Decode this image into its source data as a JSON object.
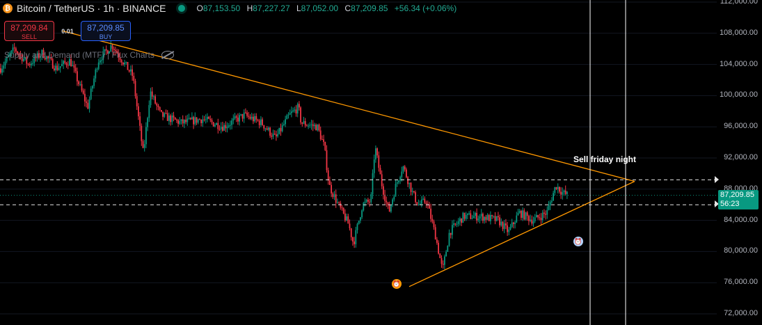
{
  "header": {
    "symbol_icon": "bitcoin-icon",
    "symbol_icon_glyph": "₿",
    "title": "Bitcoin / TetherUS · 1h · BINANCE",
    "ohlc": [
      {
        "k": "O",
        "v": "87,153.50"
      },
      {
        "k": "H",
        "v": "87,227.27"
      },
      {
        "k": "L",
        "v": "87,052.00"
      },
      {
        "k": "C",
        "v": "87,209.85"
      }
    ],
    "change": "+56.34 (+0.06%)"
  },
  "trade": {
    "sell_price": "87,209.84",
    "sell_label": "SELL",
    "qty": "0.01",
    "buy_price": "87,209.85",
    "buy_label": "BUY"
  },
  "indicator": {
    "label": "Supply and Demand (MTF) | Flux Charts"
  },
  "annotation": "Sell friday night",
  "current": {
    "price": "87,209.85",
    "countdown": "56:23"
  },
  "colors": {
    "background": "#000000",
    "up": "#089981",
    "down": "#f23645",
    "trendline": "#ff9800",
    "vline": "#ffffff"
  },
  "chart_data": {
    "type": "candlestick",
    "symbol": "BTCUSDT",
    "timeframe": "1h",
    "ylim": [
      70000,
      112000
    ],
    "y_ticks": [
      72000,
      76000,
      80000,
      84000,
      88000,
      92000,
      96000,
      100000,
      104000,
      108000,
      112000
    ],
    "y_tick_labels": [
      "72,000.00",
      "76,000.00",
      "80,000.00",
      "84,000.00",
      "88,000.00",
      "92,000.00",
      "96,000.00",
      "100,000.00",
      "104,000.00",
      "108,000.00",
      "112,000.00"
    ],
    "price_path": [
      [
        0,
        103500
      ],
      [
        20,
        106000
      ],
      [
        40,
        104000
      ],
      [
        60,
        105500
      ],
      [
        80,
        103500
      ],
      [
        100,
        104500
      ],
      [
        125,
        98500
      ],
      [
        140,
        104500
      ],
      [
        160,
        106500
      ],
      [
        175,
        104500
      ],
      [
        190,
        102500
      ],
      [
        205,
        92500
      ],
      [
        215,
        100500
      ],
      [
        230,
        97500
      ],
      [
        260,
        96500
      ],
      [
        290,
        97000
      ],
      [
        320,
        96000
      ],
      [
        350,
        97500
      ],
      [
        375,
        96500
      ],
      [
        395,
        94500
      ],
      [
        415,
        97500
      ],
      [
        428,
        98500
      ],
      [
        432,
        96500
      ],
      [
        455,
        96000
      ],
      [
        465,
        93500
      ],
      [
        472,
        88500
      ],
      [
        485,
        86000
      ],
      [
        500,
        83500
      ],
      [
        507,
        81000
      ],
      [
        520,
        86000
      ],
      [
        532,
        86500
      ],
      [
        538,
        93500
      ],
      [
        548,
        88500
      ],
      [
        558,
        85000
      ],
      [
        568,
        88500
      ],
      [
        578,
        91000
      ],
      [
        592,
        87500
      ],
      [
        600,
        86000
      ],
      [
        612,
        86500
      ],
      [
        625,
        82000
      ],
      [
        635,
        77500
      ],
      [
        645,
        82500
      ],
      [
        665,
        84500
      ],
      [
        690,
        84500
      ],
      [
        715,
        84000
      ],
      [
        730,
        82500
      ],
      [
        745,
        85000
      ],
      [
        765,
        84000
      ],
      [
        785,
        85000
      ],
      [
        798,
        88500
      ],
      [
        808,
        87500
      ],
      [
        816,
        87200
      ]
    ],
    "trendlines": [
      {
        "from": [
          90,
          108300
        ],
        "to": [
          912,
          89000
        ]
      },
      {
        "from": [
          588,
          75500
        ],
        "to": [
          912,
          89000
        ]
      }
    ],
    "horizontal_levels": [
      89200,
      86000
    ],
    "vertical_lines_x": [
      848,
      899
    ],
    "last_price": 87209.85
  }
}
